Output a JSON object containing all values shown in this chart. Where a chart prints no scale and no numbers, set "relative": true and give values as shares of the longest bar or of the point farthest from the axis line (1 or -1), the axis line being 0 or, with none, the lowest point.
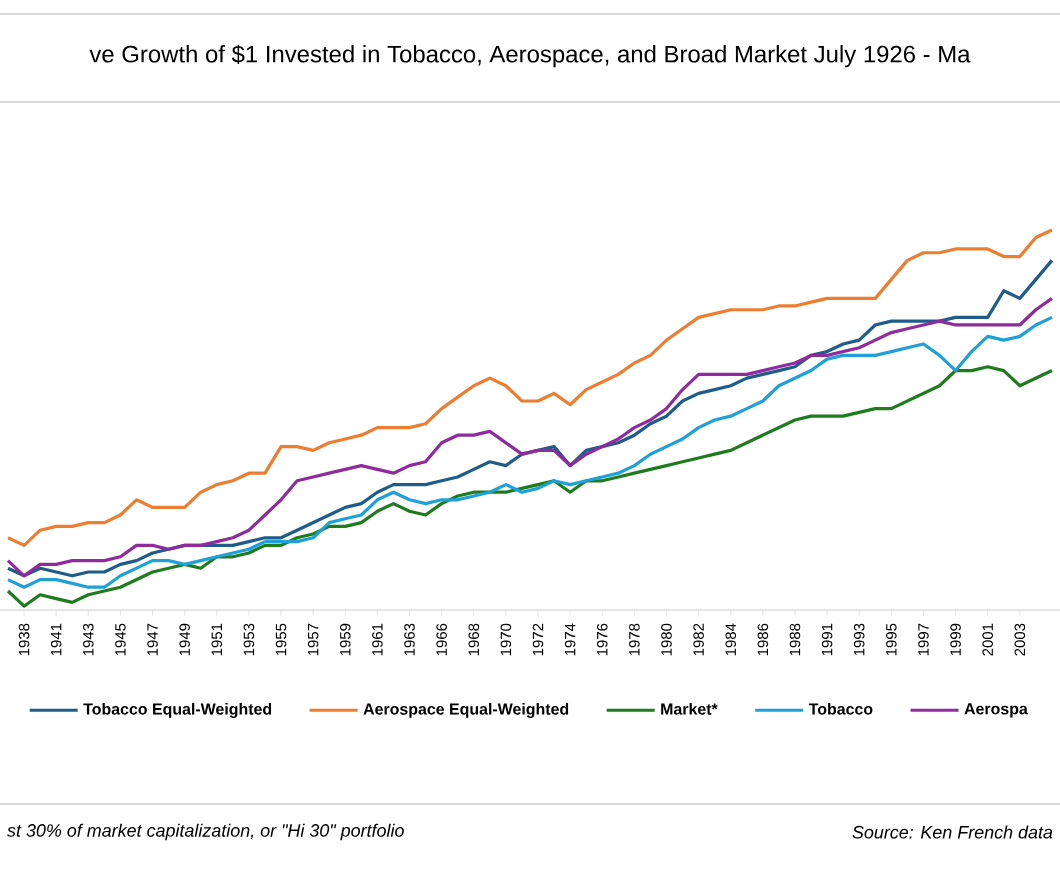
{
  "chart_data": {
    "type": "line",
    "relative": true,
    "legend": "bottom",
    "title": "ve Growth of $1 Invested in Tobacco, Aerospace, and Broad Market July 1926 - Ma",
    "annotations": [
      "st 30% of market capitalization, or \"Hi 30\" portfolio",
      "Source:  Ken French data"
    ],
    "categories": [
      null,
      "1938",
      null,
      "1941",
      null,
      "1943",
      null,
      "1945",
      null,
      "1947",
      null,
      "1949",
      null,
      "1951",
      null,
      "1953",
      null,
      "1955",
      null,
      "1957",
      null,
      "1959",
      null,
      "1961",
      null,
      "1963",
      null,
      "1966",
      null,
      "1968",
      null,
      "1970",
      null,
      "1972",
      null,
      "1974",
      null,
      "1976",
      null,
      "1978",
      null,
      "1980",
      null,
      "1982",
      null,
      "1984",
      null,
      "1986",
      null,
      "1988",
      null,
      "1991",
      null,
      "1993",
      null,
      "1995",
      null,
      "1997",
      null,
      "1999",
      null,
      "2001",
      null,
      "2003",
      null,
      null
    ],
    "series": [
      {
        "name": "Tobacco Equal-Weighted",
        "color": "#1f5c8a",
        "values": [
          0.11,
          0.09,
          0.11,
          0.1,
          0.09,
          0.1,
          0.1,
          0.12,
          0.13,
          0.15,
          0.16,
          0.17,
          0.17,
          0.17,
          0.17,
          0.18,
          0.19,
          0.19,
          0.21,
          0.23,
          0.25,
          0.27,
          0.28,
          0.31,
          0.33,
          0.33,
          0.33,
          0.34,
          0.35,
          0.37,
          0.39,
          0.38,
          0.41,
          0.42,
          0.43,
          0.38,
          0.42,
          0.43,
          0.44,
          0.46,
          0.49,
          0.51,
          0.55,
          0.57,
          0.58,
          0.59,
          0.61,
          0.62,
          0.63,
          0.64,
          0.67,
          0.68,
          0.7,
          0.71,
          0.75,
          0.76,
          0.76,
          0.76,
          0.76,
          0.77,
          0.77,
          0.77,
          0.84,
          0.82,
          0.87,
          0.92
        ]
      },
      {
        "name": "Aerospace Equal-Weighted",
        "color": "#ed7d31",
        "values": [
          0.19,
          0.17,
          0.21,
          0.22,
          0.22,
          0.23,
          0.23,
          0.25,
          0.29,
          0.27,
          0.27,
          0.27,
          0.31,
          0.33,
          0.34,
          0.36,
          0.36,
          0.43,
          0.43,
          0.42,
          0.44,
          0.45,
          0.46,
          0.48,
          0.48,
          0.48,
          0.49,
          0.53,
          0.56,
          0.59,
          0.61,
          0.59,
          0.55,
          0.55,
          0.57,
          0.54,
          0.58,
          0.6,
          0.62,
          0.65,
          0.67,
          0.71,
          0.74,
          0.77,
          0.78,
          0.79,
          0.79,
          0.79,
          0.8,
          0.8,
          0.81,
          0.82,
          0.82,
          0.82,
          0.82,
          0.87,
          0.92,
          0.94,
          0.94,
          0.95,
          0.95,
          0.95,
          0.93,
          0.93,
          0.98,
          1
        ]
      },
      {
        "name": "Market*",
        "color": "#1e7b1e",
        "values": [
          0.05,
          0.01,
          0.04,
          0.03,
          0.02,
          0.04,
          0.05,
          0.06,
          0.08,
          0.1,
          0.11,
          0.12,
          0.11,
          0.14,
          0.14,
          0.15,
          0.17,
          0.17,
          0.19,
          0.2,
          0.22,
          0.22,
          0.23,
          0.26,
          0.28,
          0.26,
          0.25,
          0.28,
          0.3,
          0.31,
          0.31,
          0.31,
          0.32,
          0.33,
          0.34,
          0.31,
          0.34,
          0.34,
          0.35,
          0.36,
          0.37,
          0.38,
          0.39,
          0.4,
          0.41,
          0.42,
          0.44,
          0.46,
          0.48,
          0.5,
          0.51,
          0.51,
          0.51,
          0.52,
          0.53,
          0.53,
          0.55,
          0.57,
          0.59,
          0.63,
          0.63,
          0.64,
          0.63,
          0.59,
          0.61,
          0.63
        ]
      },
      {
        "name": "Tobacco",
        "color": "#1fa0d6",
        "values": [
          0.08,
          0.06,
          0.08,
          0.08,
          0.07,
          0.06,
          0.06,
          0.09,
          0.11,
          0.13,
          0.13,
          0.12,
          0.13,
          0.14,
          0.15,
          0.16,
          0.18,
          0.18,
          0.18,
          0.19,
          0.23,
          0.24,
          0.25,
          0.29,
          0.31,
          0.29,
          0.28,
          0.29,
          0.29,
          0.3,
          0.31,
          0.33,
          0.31,
          0.32,
          0.34,
          0.33,
          0.34,
          0.35,
          0.36,
          0.38,
          0.41,
          0.43,
          0.45,
          0.48,
          0.5,
          0.51,
          0.53,
          0.55,
          0.59,
          0.61,
          0.63,
          0.66,
          0.67,
          0.67,
          0.67,
          0.68,
          0.69,
          0.7,
          0.67,
          0.63,
          0.68,
          0.72,
          0.71,
          0.72,
          0.75,
          0.77
        ]
      },
      {
        "name": "Aerospa",
        "color": "#8e2c9e",
        "values": [
          0.13,
          0.09,
          0.12,
          0.12,
          0.13,
          0.13,
          0.13,
          0.14,
          0.17,
          0.17,
          0.16,
          0.17,
          0.17,
          0.18,
          0.19,
          0.21,
          0.25,
          0.29,
          0.34,
          0.35,
          0.36,
          0.37,
          0.38,
          0.37,
          0.36,
          0.38,
          0.39,
          0.44,
          0.46,
          0.46,
          0.47,
          0.44,
          0.41,
          0.42,
          0.42,
          0.38,
          0.41,
          0.43,
          0.45,
          0.48,
          0.5,
          0.53,
          0.58,
          0.62,
          0.62,
          0.62,
          0.62,
          0.63,
          0.64,
          0.65,
          0.67,
          0.67,
          0.68,
          0.69,
          0.71,
          0.73,
          0.74,
          0.75,
          0.76,
          0.75,
          0.75,
          0.75,
          0.75,
          0.75,
          0.79,
          0.82
        ]
      }
    ]
  }
}
